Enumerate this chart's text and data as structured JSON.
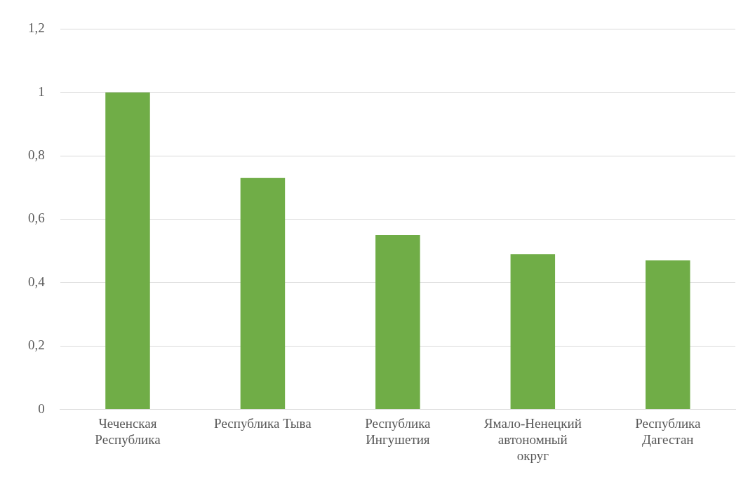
{
  "chart_data": {
    "type": "bar",
    "categories": [
      "Чеченская Республика",
      "Республика Тыва",
      "Республика Ингушетия",
      "Ямало-Ненецкий автономный округ",
      "Республика Дагестан"
    ],
    "values": [
      1,
      0.73,
      0.55,
      0.49,
      0.47
    ],
    "color": "#70ad47",
    "ylim": [
      0,
      1.2
    ],
    "yticks": [
      {
        "value": 0,
        "label": "0"
      },
      {
        "value": 0.2,
        "label": "0,2"
      },
      {
        "value": 0.4,
        "label": "0,4"
      },
      {
        "value": 0.6,
        "label": "0,6"
      },
      {
        "value": 0.8,
        "label": "0,8"
      },
      {
        "value": 1,
        "label": "1"
      },
      {
        "value": 1.2,
        "label": "1,2"
      }
    ],
    "grid": "y",
    "legend": false
  }
}
